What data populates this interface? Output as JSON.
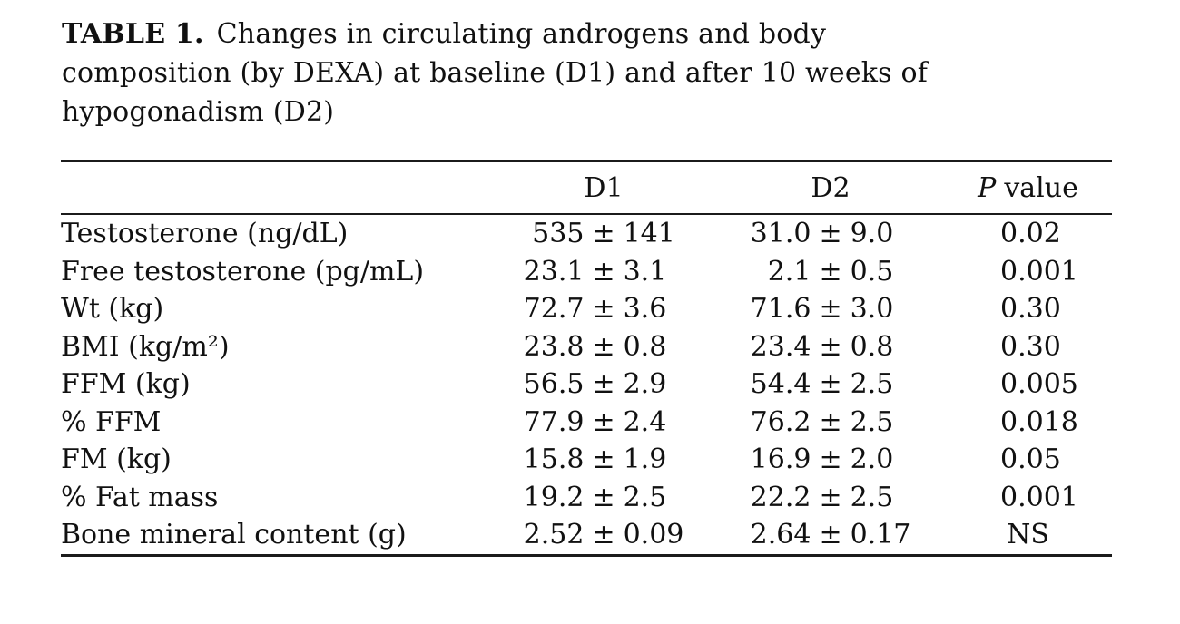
{
  "title": {
    "label": "TABLE 1.",
    "line1": "Changes in circulating androgens and body",
    "line2": "composition (by DEXA) at baseline (D1) and after 10 weeks of",
    "line3": "hypogonadism (D2)"
  },
  "table": {
    "plus_minus": "±",
    "header": {
      "d1": "D1",
      "d2": "D2",
      "p_italic": "P",
      "p_rest": "value"
    },
    "rows": [
      {
        "label": "Testosterone (ng/dL)",
        "d1_mean": "535",
        "d1_sd": "141",
        "d2_mean": "31.0",
        "d2_sd": "9.0",
        "p": "0.02"
      },
      {
        "label": "Free testosterone (pg/mL)",
        "d1_mean": "23.1",
        "d1_sd": "3.1",
        "d2_mean": "2.1",
        "d2_sd": "0.5",
        "p": "0.001"
      },
      {
        "label": "Wt (kg)",
        "d1_mean": "72.7",
        "d1_sd": "3.6",
        "d2_mean": "71.6",
        "d2_sd": "3.0",
        "p": "0.30"
      },
      {
        "label": "BMI (kg/m²)",
        "d1_mean": "23.8",
        "d1_sd": "0.8",
        "d2_mean": "23.4",
        "d2_sd": "0.8",
        "p": "0.30"
      },
      {
        "label": "FFM (kg)",
        "d1_mean": "56.5",
        "d1_sd": "2.9",
        "d2_mean": "54.4",
        "d2_sd": "2.5",
        "p": "0.005"
      },
      {
        "label": "% FFM",
        "d1_mean": "77.9",
        "d1_sd": "2.4",
        "d2_mean": "76.2",
        "d2_sd": "2.5",
        "p": "0.018"
      },
      {
        "label": "FM (kg)",
        "d1_mean": "15.8",
        "d1_sd": "1.9",
        "d2_mean": "16.9",
        "d2_sd": "2.0",
        "p": "0.05"
      },
      {
        "label": "% Fat mass",
        "d1_mean": "19.2",
        "d1_sd": "2.5",
        "d2_mean": "22.2",
        "d2_sd": "2.5",
        "p": "0.001"
      },
      {
        "label": "Bone mineral content (g)",
        "d1_mean": "2.52",
        "d1_sd": "0.09",
        "d2_mean": "2.64",
        "d2_sd": "0.17",
        "p": "NS"
      }
    ]
  },
  "colors": {
    "text": "#111111",
    "rule": "#1b1b1b",
    "background": "#ffffff"
  }
}
